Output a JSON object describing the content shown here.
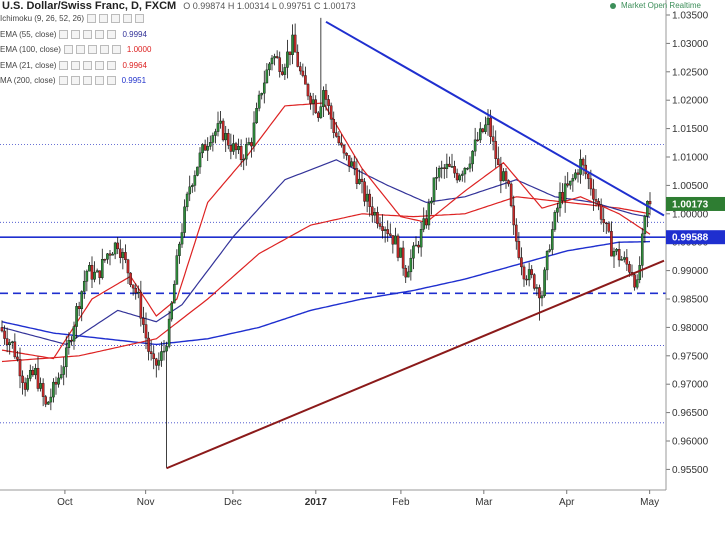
{
  "header": {
    "title": "U.S. Dollar/Swiss Franc, D, FXCM",
    "ohlc": "O 0.99874  H 1.00314  L 0.99751  C 1.00173"
  },
  "status": {
    "label": "Market Open Realtime",
    "color": "#3d8f5a"
  },
  "indicators": [
    {
      "label": "Ichimoku (9, 26, 52, 26)",
      "value": "",
      "color": "#333333"
    },
    {
      "label": "EMA (55, close)",
      "value": "0.9994",
      "color": "#333399"
    },
    {
      "label": "EMA (100, close)",
      "value": "1.0000",
      "color": "#dd2222"
    },
    {
      "label": "EMA (21, close)",
      "value": "0.9964",
      "color": "#dd2222"
    },
    {
      "label": "MA (200, close)",
      "value": "0.9951",
      "color": "#2233cc"
    }
  ],
  "chart_data": {
    "type": "line",
    "subtype": "candlestick",
    "symbol": "USD/CHF",
    "timeframe": "D",
    "y_ticks": [
      "1.03500",
      "1.03000",
      "1.02500",
      "1.02000",
      "1.01500",
      "1.01000",
      "1.00500",
      "1.00000",
      "0.99500",
      "0.99000",
      "0.98500",
      "0.98000",
      "0.97500",
      "0.97000",
      "0.96500",
      "0.96000",
      "0.95500"
    ],
    "ylim": [
      0.9515,
      1.0365
    ],
    "x_ticks": [
      "Oct",
      "Nov",
      "Dec",
      "2017",
      "Feb",
      "Mar",
      "Apr",
      "May"
    ],
    "price_labels": [
      {
        "value": 1.00173,
        "text": "1.00173",
        "color": "#2e7d32"
      },
      {
        "value": 0.99588,
        "text": "0.99588",
        "color": "#1f2fcf"
      }
    ],
    "horizontal_levels": [
      {
        "value": 0.99588,
        "style": "solid",
        "color": "#1f2fcf"
      },
      {
        "value": 0.986,
        "style": "dashed",
        "color": "#1f2fcf"
      }
    ],
    "dotted_levels": [
      1.0122,
      0.9985,
      0.9768,
      0.9632
    ],
    "trendlines": [
      {
        "name": "resistance",
        "color": "#1f2fcf",
        "from": {
          "bar": 126,
          "value": 1.0338
        },
        "to": {
          "bar": 252,
          "value": 1.001
        }
      },
      {
        "name": "support",
        "color": "#8b1a1a",
        "from": {
          "bar": 64,
          "value": 0.9552
        },
        "to": {
          "bar": 252,
          "value": 0.9908
        }
      }
    ],
    "anchors": [
      {
        "bar": 0,
        "value": 0.98
      },
      {
        "bar": 5,
        "value": 0.977
      },
      {
        "bar": 10,
        "value": 0.97
      },
      {
        "bar": 14,
        "value": 0.972
      },
      {
        "bar": 18,
        "value": 0.966
      },
      {
        "bar": 22,
        "value": 0.97
      },
      {
        "bar": 26,
        "value": 0.975
      },
      {
        "bar": 30,
        "value": 0.983
      },
      {
        "bar": 34,
        "value": 0.99
      },
      {
        "bar": 38,
        "value": 0.989
      },
      {
        "bar": 42,
        "value": 0.993
      },
      {
        "bar": 46,
        "value": 0.995
      },
      {
        "bar": 50,
        "value": 0.99
      },
      {
        "bar": 54,
        "value": 0.985
      },
      {
        "bar": 58,
        "value": 0.976
      },
      {
        "bar": 60,
        "value": 0.973
      },
      {
        "bar": 62,
        "value": 0.974
      },
      {
        "bar": 64,
        "value": 0.976
      },
      {
        "bar": 66,
        "value": 0.98
      },
      {
        "bar": 70,
        "value": 0.995
      },
      {
        "bar": 74,
        "value": 1.005
      },
      {
        "bar": 78,
        "value": 1.01
      },
      {
        "bar": 82,
        "value": 1.014
      },
      {
        "bar": 86,
        "value": 1.015
      },
      {
        "bar": 90,
        "value": 1.012
      },
      {
        "bar": 94,
        "value": 1.01
      },
      {
        "bar": 98,
        "value": 1.013
      },
      {
        "bar": 102,
        "value": 1.022
      },
      {
        "bar": 106,
        "value": 1.028
      },
      {
        "bar": 110,
        "value": 1.026
      },
      {
        "bar": 114,
        "value": 1.03
      },
      {
        "bar": 118,
        "value": 1.023
      },
      {
        "bar": 122,
        "value": 1.02
      },
      {
        "bar": 124,
        "value": 1.018
      },
      {
        "bar": 126,
        "value": 1.022
      },
      {
        "bar": 130,
        "value": 1.015
      },
      {
        "bar": 134,
        "value": 1.01
      },
      {
        "bar": 138,
        "value": 1.008
      },
      {
        "bar": 142,
        "value": 1.003
      },
      {
        "bar": 146,
        "value": 1.0
      },
      {
        "bar": 150,
        "value": 0.998
      },
      {
        "bar": 154,
        "value": 0.995
      },
      {
        "bar": 158,
        "value": 0.99
      },
      {
        "bar": 162,
        "value": 0.994
      },
      {
        "bar": 166,
        "value": 0.999
      },
      {
        "bar": 170,
        "value": 1.007
      },
      {
        "bar": 174,
        "value": 1.008
      },
      {
        "bar": 178,
        "value": 1.007
      },
      {
        "bar": 182,
        "value": 1.009
      },
      {
        "bar": 186,
        "value": 1.013
      },
      {
        "bar": 190,
        "value": 1.016
      },
      {
        "bar": 194,
        "value": 1.008
      },
      {
        "bar": 198,
        "value": 1.004
      },
      {
        "bar": 200,
        "value": 0.997
      },
      {
        "bar": 204,
        "value": 0.99
      },
      {
        "bar": 208,
        "value": 0.988
      },
      {
        "bar": 211,
        "value": 0.986
      },
      {
        "bar": 214,
        "value": 0.995
      },
      {
        "bar": 218,
        "value": 1.003
      },
      {
        "bar": 222,
        "value": 1.005
      },
      {
        "bar": 226,
        "value": 1.009
      },
      {
        "bar": 230,
        "value": 1.005
      },
      {
        "bar": 234,
        "value": 1.0
      },
      {
        "bar": 238,
        "value": 0.994
      },
      {
        "bar": 242,
        "value": 0.992
      },
      {
        "bar": 246,
        "value": 0.99
      },
      {
        "bar": 248,
        "value": 0.987
      },
      {
        "bar": 250,
        "value": 0.995
      },
      {
        "bar": 252,
        "value": 1.0017
      }
    ],
    "ema21": [
      {
        "bar": 0,
        "value": 0.976
      },
      {
        "bar": 20,
        "value": 0.9745
      },
      {
        "bar": 35,
        "value": 0.985
      },
      {
        "bar": 50,
        "value": 0.989
      },
      {
        "bar": 60,
        "value": 0.982
      },
      {
        "bar": 68,
        "value": 0.985
      },
      {
        "bar": 80,
        "value": 1.002
      },
      {
        "bar": 95,
        "value": 1.01
      },
      {
        "bar": 110,
        "value": 1.019
      },
      {
        "bar": 125,
        "value": 1.0195
      },
      {
        "bar": 140,
        "value": 1.008
      },
      {
        "bar": 155,
        "value": 0.9995
      },
      {
        "bar": 165,
        "value": 0.9985
      },
      {
        "bar": 180,
        "value": 1.004
      },
      {
        "bar": 195,
        "value": 1.009
      },
      {
        "bar": 210,
        "value": 1.001
      },
      {
        "bar": 225,
        "value": 1.003
      },
      {
        "bar": 240,
        "value": 1.0
      },
      {
        "bar": 252,
        "value": 0.9964
      }
    ],
    "ema55": [
      {
        "bar": 0,
        "value": 0.98
      },
      {
        "bar": 25,
        "value": 0.977
      },
      {
        "bar": 45,
        "value": 0.983
      },
      {
        "bar": 60,
        "value": 0.981
      },
      {
        "bar": 70,
        "value": 0.984
      },
      {
        "bar": 90,
        "value": 0.996
      },
      {
        "bar": 110,
        "value": 1.006
      },
      {
        "bar": 130,
        "value": 1.0095
      },
      {
        "bar": 150,
        "value": 1.005
      },
      {
        "bar": 165,
        "value": 1.002
      },
      {
        "bar": 180,
        "value": 1.003
      },
      {
        "bar": 200,
        "value": 1.006
      },
      {
        "bar": 215,
        "value": 1.003
      },
      {
        "bar": 230,
        "value": 1.002
      },
      {
        "bar": 245,
        "value": 1.0
      },
      {
        "bar": 252,
        "value": 0.9994
      }
    ],
    "ema100": [
      {
        "bar": 0,
        "value": 0.974
      },
      {
        "bar": 30,
        "value": 0.975
      },
      {
        "bar": 60,
        "value": 0.978
      },
      {
        "bar": 80,
        "value": 0.985
      },
      {
        "bar": 100,
        "value": 0.993
      },
      {
        "bar": 120,
        "value": 0.998
      },
      {
        "bar": 140,
        "value": 1.0
      },
      {
        "bar": 160,
        "value": 0.9995
      },
      {
        "bar": 180,
        "value": 1.0
      },
      {
        "bar": 200,
        "value": 1.003
      },
      {
        "bar": 220,
        "value": 1.002
      },
      {
        "bar": 240,
        "value": 1.001
      },
      {
        "bar": 252,
        "value": 1.0
      }
    ],
    "ma200": [
      {
        "bar": 0,
        "value": 0.981
      },
      {
        "bar": 20,
        "value": 0.979
      },
      {
        "bar": 40,
        "value": 0.978
      },
      {
        "bar": 60,
        "value": 0.977
      },
      {
        "bar": 80,
        "value": 0.978
      },
      {
        "bar": 100,
        "value": 0.98
      },
      {
        "bar": 120,
        "value": 0.983
      },
      {
        "bar": 140,
        "value": 0.985
      },
      {
        "bar": 160,
        "value": 0.9865
      },
      {
        "bar": 180,
        "value": 0.9885
      },
      {
        "bar": 200,
        "value": 0.991
      },
      {
        "bar": 220,
        "value": 0.9935
      },
      {
        "bar": 240,
        "value": 0.995
      },
      {
        "bar": 252,
        "value": 0.9951
      }
    ]
  }
}
